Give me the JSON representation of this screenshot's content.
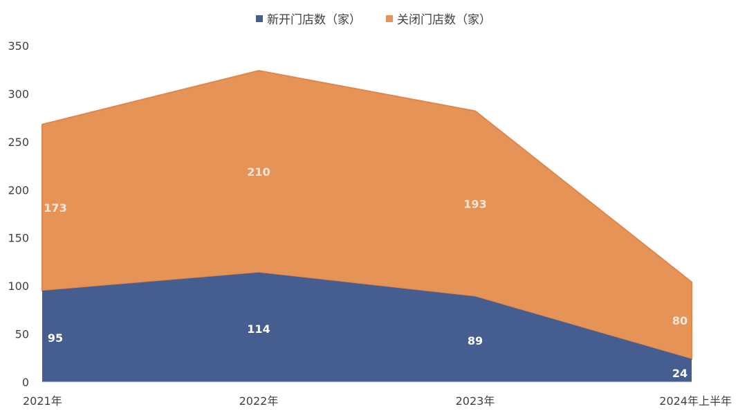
{
  "chart_data": {
    "type": "area",
    "stacked": true,
    "categories": [
      "2021年",
      "2022年",
      "2023年",
      "2024年上半年"
    ],
    "series": [
      {
        "name": "新开门店数（家）",
        "values": [
          95,
          114,
          89,
          24
        ],
        "color": "#455d8f"
      },
      {
        "name": "关闭门店数（家）",
        "values": [
          173,
          210,
          193,
          80
        ],
        "color": "#e69358"
      }
    ],
    "ylim": [
      0,
      350
    ],
    "yticks": [
      0,
      50,
      100,
      150,
      200,
      250,
      300,
      350
    ],
    "legend_position": "top-center",
    "grid": false,
    "data_label_colors": [
      "#ffffff",
      "#fbe7d8"
    ]
  }
}
